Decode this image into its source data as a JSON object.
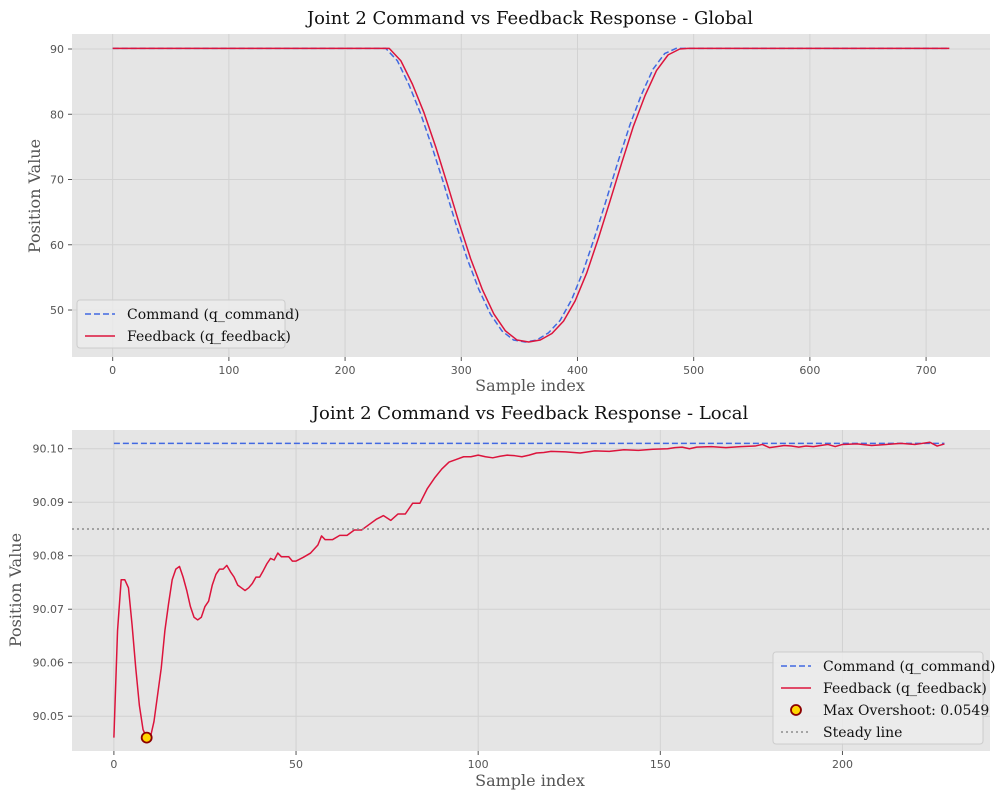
{
  "colors": {
    "command": "#4169e1",
    "feedback": "#dc143c",
    "overshoot_fill": "#ffd700",
    "overshoot_edge": "#8b0000",
    "steady": "#8c8c8c"
  },
  "chart_data": [
    {
      "type": "line",
      "title": "Joint 2 Command vs Feedback Response - Global",
      "xlabel": "Sample index",
      "ylabel": "Position Value",
      "xlim": [
        -35,
        755
      ],
      "ylim": [
        42.8,
        92.3
      ],
      "xticks": [
        0,
        100,
        200,
        300,
        400,
        500,
        600,
        700
      ],
      "yticks": [
        50,
        60,
        70,
        80,
        90
      ],
      "grid": true,
      "legend": "lower-left",
      "series": [
        {
          "name": "Command (q_command)",
          "style": "dashed",
          "x": [
            0,
            235,
            245,
            255,
            265,
            275,
            285,
            295,
            305,
            315,
            325,
            335,
            345,
            355,
            365,
            375,
            385,
            395,
            405,
            415,
            425,
            435,
            445,
            455,
            465,
            475,
            485,
            490,
            720
          ],
          "y": [
            90.1,
            90.1,
            88.2,
            84.5,
            80.1,
            74.9,
            69.3,
            63.4,
            57.9,
            53.2,
            49.4,
            46.8,
            45.4,
            45.1,
            45.4,
            46.5,
            48.4,
            51.6,
            56.0,
            61.3,
            67.0,
            72.8,
            78.3,
            83.0,
            86.9,
            89.3,
            90.1,
            90.1,
            90.1
          ]
        },
        {
          "name": "Feedback (q_feedback)",
          "style": "solid",
          "x": [
            0,
            238,
            248,
            258,
            268,
            278,
            288,
            298,
            308,
            318,
            328,
            338,
            348,
            358,
            368,
            378,
            388,
            398,
            408,
            418,
            428,
            438,
            448,
            458,
            468,
            478,
            488,
            495,
            720
          ],
          "y": [
            90.1,
            90.1,
            88.2,
            84.6,
            80.2,
            75.0,
            69.3,
            63.4,
            57.9,
            53.2,
            49.4,
            46.8,
            45.4,
            45.1,
            45.4,
            46.4,
            48.3,
            51.4,
            55.7,
            61.0,
            66.7,
            72.5,
            78.1,
            82.8,
            86.7,
            89.1,
            90.0,
            90.1,
            90.1
          ]
        }
      ]
    },
    {
      "type": "line",
      "title": "Joint 2 Command vs Feedback Response - Local",
      "xlabel": "Sample index",
      "ylabel": "Position Value",
      "xlim": [
        -11.5,
        240.5
      ],
      "ylim": [
        90.0435,
        90.1035
      ],
      "xticks": [
        0,
        50,
        100,
        150,
        200
      ],
      "yticks": [
        90.05,
        90.06,
        90.07,
        90.08,
        90.09,
        90.1
      ],
      "ytick_labels": [
        "90.05",
        "90.06",
        "90.07",
        "90.08",
        "90.09",
        "90.10"
      ],
      "grid": true,
      "legend": "lower-right",
      "series": [
        {
          "name": "Command (q_command)",
          "style": "dashed",
          "x": [
            0,
            228
          ],
          "y": [
            90.101,
            90.101
          ]
        },
        {
          "name": "Feedback (q_feedback)",
          "style": "solid",
          "x": [
            0,
            1,
            2,
            3,
            4,
            5,
            6,
            7,
            8,
            9,
            10,
            11,
            12,
            13,
            14,
            15,
            16,
            17,
            18,
            19,
            20,
            21,
            22,
            23,
            24,
            25,
            26,
            27,
            28,
            29,
            30,
            31,
            32,
            33,
            34,
            35,
            36,
            37,
            38,
            39,
            40,
            41,
            42,
            43,
            44,
            45,
            46,
            47,
            48,
            49,
            50,
            52,
            54,
            56,
            57,
            58,
            60,
            62,
            64,
            66,
            68,
            70,
            72,
            74,
            76,
            78,
            80,
            82,
            84,
            86,
            88,
            90,
            92,
            94,
            96,
            98,
            100,
            102,
            104,
            106,
            108,
            110,
            112,
            114,
            116,
            118,
            120,
            124,
            128,
            132,
            136,
            140,
            144,
            148,
            152,
            154,
            156,
            158,
            160,
            164,
            168,
            172,
            176,
            178,
            180,
            182,
            184,
            186,
            188,
            190,
            192,
            194,
            196,
            198,
            200,
            204,
            208,
            212,
            216,
            220,
            224,
            226,
            228
          ],
          "y": [
            90.046,
            90.066,
            90.0755,
            90.0755,
            90.074,
            90.067,
            90.059,
            90.052,
            90.0475,
            90.046,
            90.046,
            90.049,
            90.054,
            90.059,
            90.066,
            90.071,
            90.0755,
            90.0775,
            90.078,
            90.076,
            90.0735,
            90.0705,
            90.0685,
            90.068,
            90.0685,
            90.0705,
            90.0715,
            90.0745,
            90.0765,
            90.0775,
            90.0775,
            90.0782,
            90.077,
            90.076,
            90.0745,
            90.074,
            90.0735,
            90.074,
            90.0748,
            90.076,
            90.076,
            90.0772,
            90.0785,
            90.0795,
            90.0792,
            90.0805,
            90.0798,
            90.0798,
            90.0798,
            90.079,
            90.079,
            90.0797,
            90.0805,
            90.082,
            90.0837,
            90.083,
            90.083,
            90.0838,
            90.0838,
            90.0848,
            90.0848,
            90.0858,
            90.0868,
            90.0875,
            90.0866,
            90.0878,
            90.0878,
            90.0898,
            90.0898,
            90.0925,
            90.0945,
            90.0962,
            90.0975,
            90.098,
            90.0985,
            90.0985,
            90.0988,
            90.0985,
            90.0983,
            90.0986,
            90.0988,
            90.0987,
            90.0985,
            90.0988,
            90.0992,
            90.0993,
            90.0995,
            90.0994,
            90.0992,
            90.0996,
            90.0995,
            90.0998,
            90.0997,
            90.0999,
            90.1,
            90.1002,
            90.1003,
            90.1,
            90.1003,
            90.1004,
            90.1002,
            90.1004,
            90.1005,
            90.1008,
            90.1002,
            90.1004,
            90.1006,
            90.1005,
            90.1003,
            90.1005,
            90.1004,
            90.1006,
            90.1008,
            90.1004,
            90.1008,
            90.1009,
            90.1006,
            90.1008,
            90.101,
            90.1008,
            90.1012,
            90.1005,
            90.1009
          ]
        },
        {
          "name": "Max Overshoot: 0.0549",
          "style": "marker",
          "x": [
            9
          ],
          "y": [
            90.046
          ]
        },
        {
          "name": "Steady line",
          "style": "dotted",
          "y": 90.085
        }
      ]
    }
  ]
}
